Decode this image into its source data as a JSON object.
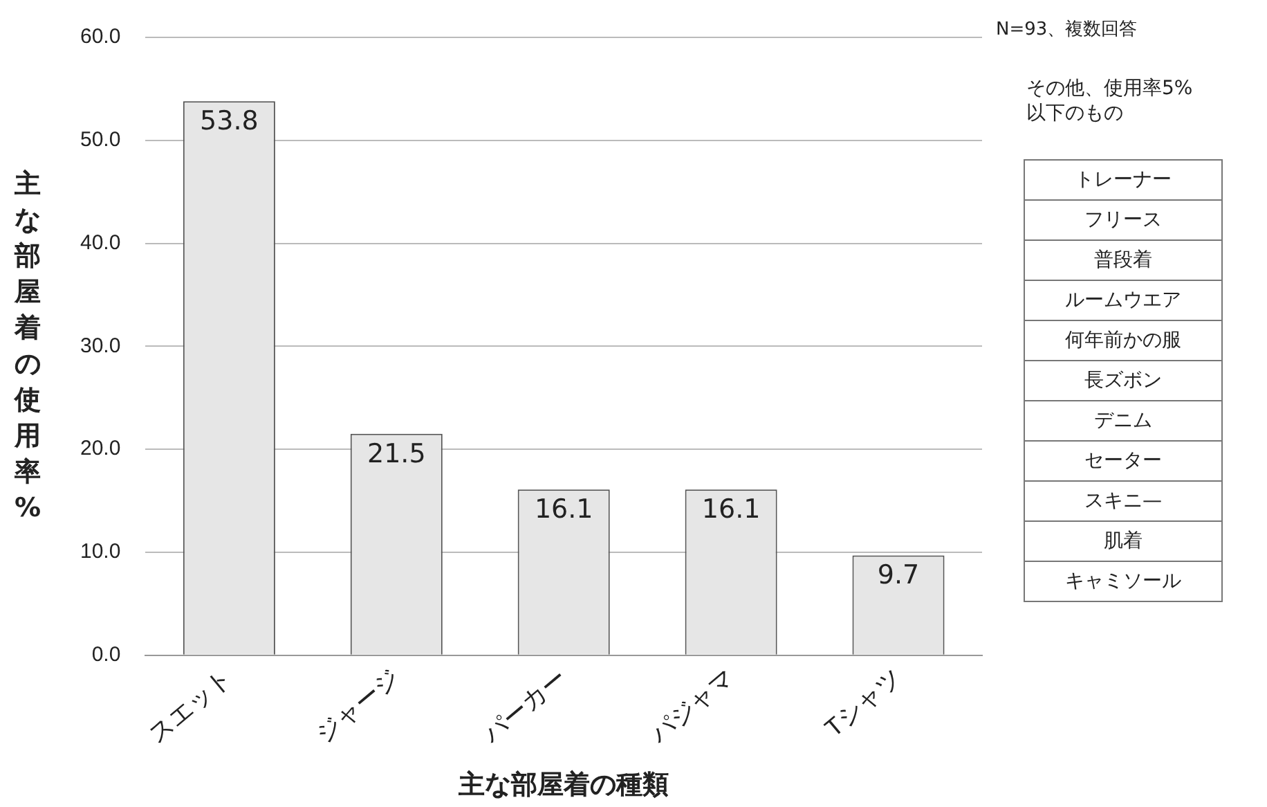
{
  "chart_data": {
    "type": "bar",
    "xlabel": "主な部屋着の種類",
    "ylabel": "主な部屋着の使用率%",
    "categories": [
      "スエット",
      "ジャージ",
      "パーカー",
      "パジャマ",
      "Tシャツ"
    ],
    "values": [
      53.8,
      21.5,
      16.1,
      16.1,
      9.7
    ],
    "color": "#e6e6e6",
    "ylim": [
      0,
      60
    ],
    "yticks": [
      {
        "value": 0,
        "label": "0.0"
      },
      {
        "value": 10,
        "label": "10.0"
      },
      {
        "value": 20,
        "label": "20.0"
      },
      {
        "value": 30,
        "label": "30.0"
      },
      {
        "value": 40,
        "label": "40.0"
      },
      {
        "value": 50,
        "label": "50.0"
      },
      {
        "value": 60,
        "label": "60.0"
      }
    ],
    "grid": "y",
    "data_labels": true,
    "legend": false,
    "annotations": [
      "N=93、複数回答",
      "その他、使用率5%以下のもの",
      "トレーナー",
      "フリース",
      "普段着",
      "ルームウエア",
      "何年前かの服",
      "長ズボン",
      "デニム",
      "セーター",
      "スキニ—",
      "肌着",
      "キャミソール"
    ]
  }
}
